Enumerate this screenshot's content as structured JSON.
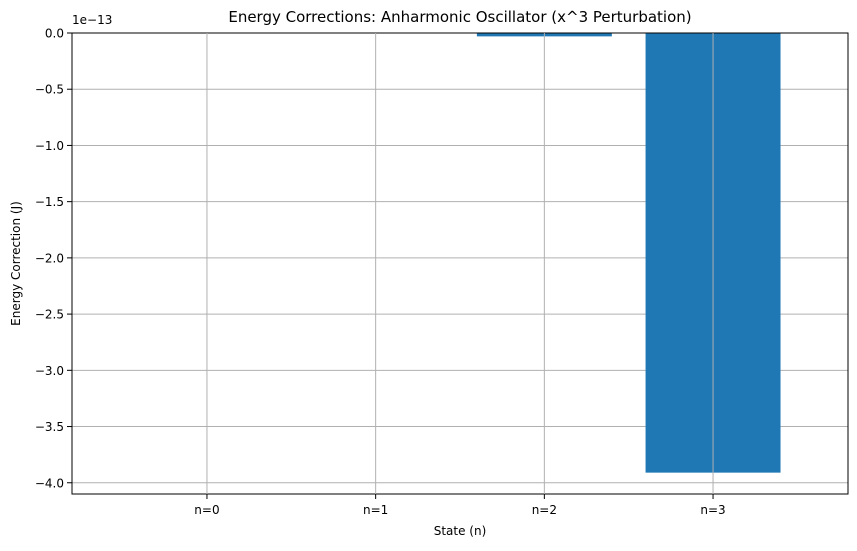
{
  "chart_data": {
    "type": "bar",
    "title": "Energy Corrections: Anharmonic Oscillator (x^3 Perturbation)",
    "xlabel": "State (n)",
    "ylabel": "Energy Correction (J)",
    "offset_label": "1e−13",
    "categories": [
      "n=0",
      "n=1",
      "n=2",
      "n=3"
    ],
    "values": [
      0,
      0,
      -3e-15,
      -3.91e-13
    ],
    "ylim": [
      -4.1e-13,
      0
    ],
    "y_ticks": [
      0,
      -5e-14,
      -1e-13,
      -1.5e-13,
      -2e-13,
      -2.5e-13,
      -3e-13,
      -3.5e-13,
      -4e-13
    ],
    "y_tick_labels": [
      "0.0",
      "−0.5",
      "−1.0",
      "−1.5",
      "−2.0",
      "−2.5",
      "−3.0",
      "−3.5",
      "−4.0"
    ],
    "grid": true,
    "bar_color": "#1f77b4",
    "grid_color": "#b0b0b0"
  }
}
